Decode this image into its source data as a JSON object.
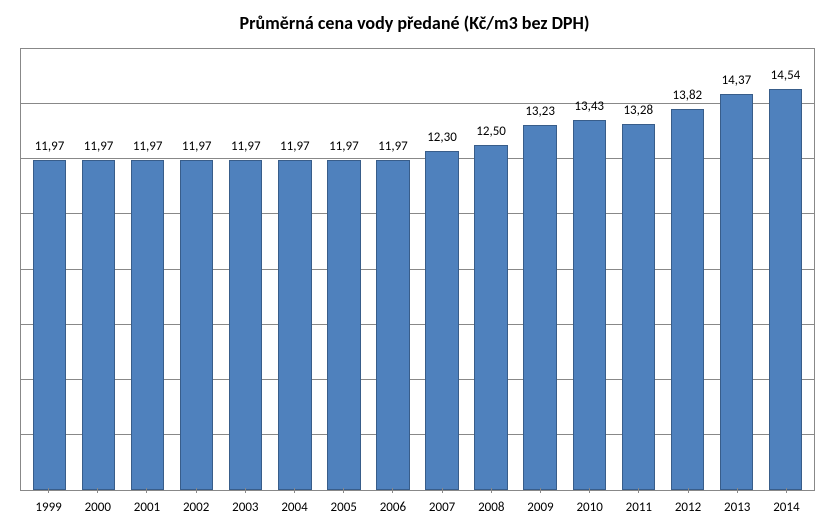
{
  "chart": {
    "type": "bar",
    "title": "Průměrná cena vody předané (Kč/m3 bez DPH)",
    "title_fontsize": 18,
    "title_fontweight": "bold",
    "title_color": "#000000",
    "background_color": "#ffffff",
    "plot_border_color": "#888888",
    "grid_color": "#888888",
    "bar_fill": "#4f81bd",
    "bar_border": "#385d8a",
    "bar_width": 0.68,
    "label_fontsize": 13,
    "label_color": "#000000",
    "value_label_fontsize": 13,
    "ylim": [
      0,
      16
    ],
    "ytick_step": 2,
    "ytick_count": 8,
    "categories": [
      "1999",
      "2000",
      "2001",
      "2002",
      "2003",
      "2004",
      "2005",
      "2006",
      "2007",
      "2008",
      "2009",
      "2010",
      "2011",
      "2012",
      "2013",
      "2014"
    ],
    "values": [
      11.97,
      11.97,
      11.97,
      11.97,
      11.97,
      11.97,
      11.97,
      11.97,
      12.3,
      12.5,
      13.23,
      13.43,
      13.28,
      13.82,
      14.37,
      14.54
    ],
    "value_labels": [
      "11,97",
      "11,97",
      "11,97",
      "11,97",
      "11,97",
      "11,97",
      "11,97",
      "11,97",
      "12,30",
      "12,50",
      "13,23",
      "13,43",
      "13,28",
      "13,82",
      "14,37",
      "14,54"
    ]
  }
}
